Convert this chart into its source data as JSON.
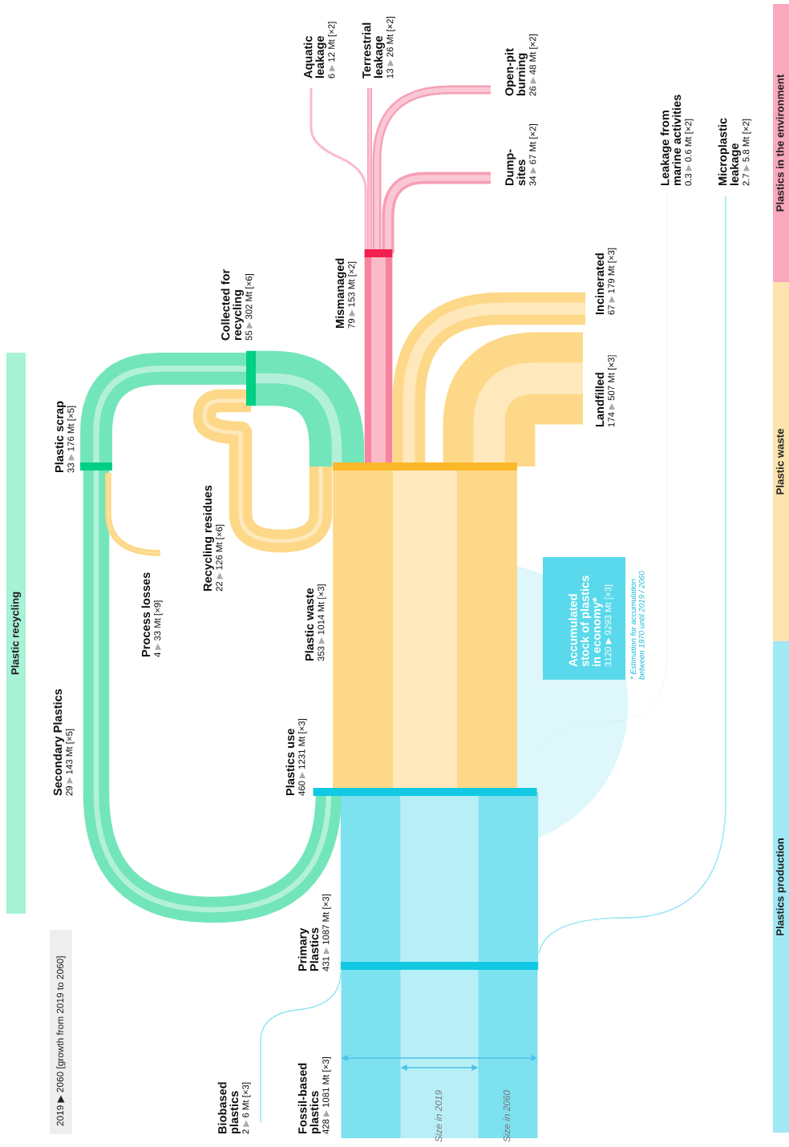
{
  "chart_data": {
    "type": "other",
    "categories": [
      "Fossil-based\nplastics",
      "Biobased\nplastics",
      "Primary\nPlastics",
      "Secondary Plastics",
      "Plastics use",
      "Accumulated\nstock of plastics\nin economy*",
      "Plastic waste",
      "Collected for\nrecycling",
      "Recycling residues",
      "Plastic scrap",
      "Process losses",
      "Mismanaged",
      "Incinerated",
      "Landfilled",
      "Dump-\nsites",
      "Open-pit\nburning",
      "Terrestrial\nleakage",
      "Aquatic\nleakage",
      "Leakage from\nmarine activities",
      "Microplastic\nleakage"
    ],
    "series": [
      {
        "values": [
          428,
          2,
          431,
          29,
          460,
          3120,
          353,
          55,
          22,
          33,
          4,
          79,
          67,
          174,
          34,
          26,
          13,
          6,
          0.3,
          2.7
        ],
        "colors": [
          "#b8eff7",
          "#b8eff7",
          "#b8eff7",
          "#b3f0da",
          "#b8eff7",
          null,
          "#fee8bc",
          "#b3f0da",
          "#fee8bc",
          "#b3f0da",
          "#fee8bc",
          "#fabbc9",
          "#fee8bc",
          "#fee8bc",
          "#fac8d5",
          "#fac8d5",
          "#fac8d5",
          "#fac8d5",
          "#b8eff7",
          "#b8eff7"
        ],
        "value_labels": [
          "428",
          "2",
          "431",
          "29",
          "460",
          "3120",
          "353",
          "55",
          "22",
          "33",
          "4",
          "79",
          "67",
          "174",
          "34",
          "26",
          "13",
          "6",
          "0.3",
          "2.7"
        ]
      },
      {
        "values": [
          1081,
          6,
          1087,
          143,
          1231,
          9293,
          1014,
          302,
          126,
          176,
          33,
          153,
          179,
          507,
          67,
          48,
          26,
          12,
          0.6,
          5.8
        ],
        "colors": [
          "#7de1f0",
          "#7de1f0",
          "#7de1f0",
          "#73e5bb",
          "#7de1f0",
          "#def7fb",
          "#fdd888",
          "#73e5bb",
          "#fdd888",
          "#73e5bb",
          "#fdd888",
          "#f7849e",
          "#fdd888",
          "#fdd888",
          "#f79fb6",
          "#f79fb6",
          "#f79fb6",
          "#f79fb6",
          "#7de1f0",
          "#7de1f0"
        ],
        "value_labels": [
          "1081 Mt [×3]",
          "6 Mt [×3]",
          "1087 Mt [×3]",
          "143 Mt [×5]",
          "1231 Mt [×3]",
          "9293 Mt [×3]",
          "1014 Mt [×3]",
          "302 Mt [×6]",
          "126 Mt [×6]",
          "176 Mt [×5]",
          "33 Mt [×9]",
          "153 Mt [×2]",
          "179 Mt [×3]",
          "507 Mt [×3]",
          "67 Mt [×2]",
          "48 Mt [×2]",
          "26 Mt [×2]",
          "12 Mt [×2]",
          "0.6 Mt [×2]",
          "5.8 Mt [×2]"
        ]
      }
    ],
    "colors": [
      "#12c9e3",
      "#12c9e3",
      "#12c9e3",
      "#00d084",
      "#12c9e3",
      "#59d9eb",
      "#fbb829",
      "#00d084",
      "#fbb829",
      "#00d084",
      "#fbb829",
      "#f0204f",
      "#fbb829",
      "#fbb829",
      "#f0507a",
      "#f0507a",
      "#f0507a",
      "#f0507a",
      "#12c9e3",
      "#12c9e3"
    ],
    "annotations": [
      "2019 ▶ 2060 [growth from 2019 to 2060]",
      "Size in 2019",
      "Size in 2060",
      "* Estimation for accumulation\nbetween 1970 until 2019 / 2060",
      "Plastic recycling",
      "Plastics in the environment",
      "Plastic waste",
      "Plastics production"
    ]
  }
}
